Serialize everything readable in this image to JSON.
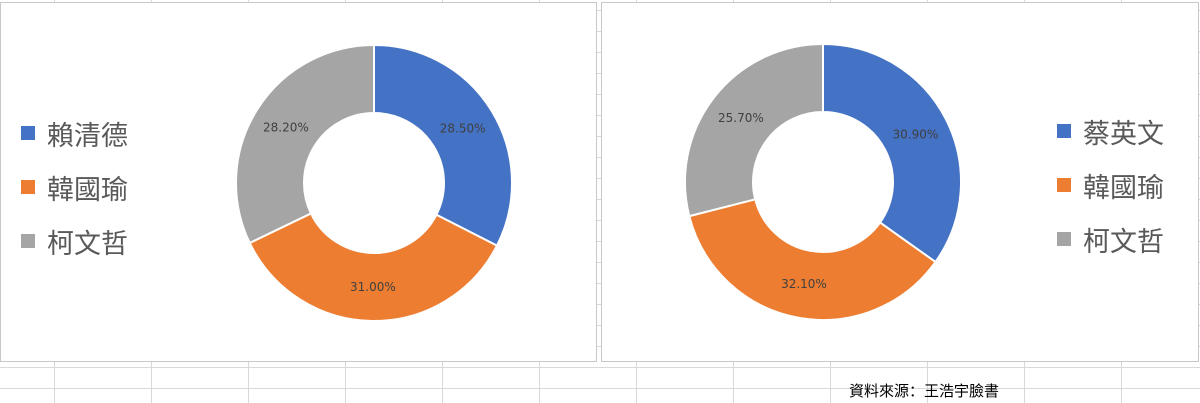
{
  "colors": {
    "blue": "#4472C4",
    "orange": "#ED7D31",
    "gray": "#A5A5A5",
    "label_text": "#404040"
  },
  "chart_data": [
    {
      "type": "pie",
      "subtype": "doughnut",
      "title": "",
      "legend_position": "left",
      "categories": [
        "賴清德",
        "韓國瑜",
        "柯文哲"
      ],
      "values": [
        28.5,
        31.0,
        28.2
      ],
      "labels": [
        "28.50%",
        "31.00%",
        "28.20%"
      ],
      "colors": [
        "#4472C4",
        "#ED7D31",
        "#A5A5A5"
      ]
    },
    {
      "type": "pie",
      "subtype": "doughnut",
      "title": "",
      "legend_position": "right",
      "categories": [
        "蔡英文",
        "韓國瑜",
        "柯文哲"
      ],
      "values": [
        30.9,
        32.1,
        25.7
      ],
      "labels": [
        "30.90%",
        "32.10%",
        "25.70%"
      ],
      "colors": [
        "#4472C4",
        "#ED7D31",
        "#A5A5A5"
      ]
    }
  ],
  "source_note": "資料來源：王浩宇臉書"
}
